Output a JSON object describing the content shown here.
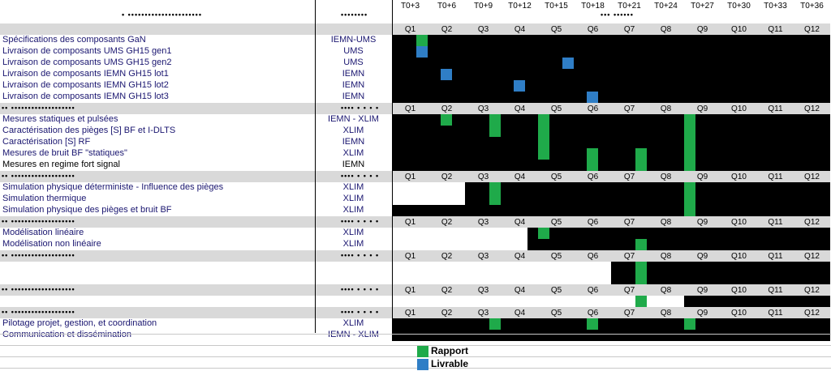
{
  "colors": {
    "black": "#000000",
    "rapport": "#1faa4a",
    "livrable": "#2f7ec6",
    "header_grey": "#d9d9d9"
  },
  "timeline": {
    "ticks": [
      "T0+3",
      "T0+6",
      "T0+9",
      "T0+12",
      "T0+15",
      "T0+18",
      "T0+21",
      "T0+24",
      "T0+27",
      "T0+30",
      "T0+33",
      "T0+36"
    ],
    "quarters": [
      "Q1",
      "Q2",
      "Q3",
      "Q4",
      "Q5",
      "Q6",
      "Q7",
      "Q8",
      "Q9",
      "Q10",
      "Q11",
      "Q12"
    ]
  },
  "sections": [
    {
      "tasks": [
        {
          "label": "Spécifications des composants GaN",
          "partner": "IEMN-UMS",
          "start": 0,
          "end": 12,
          "rapport": [
            2
          ],
          "livrable": []
        },
        {
          "label": "Livraison de composants UMS GH15 gen1",
          "partner": "UMS",
          "start": 0,
          "end": 12,
          "rapport": [],
          "livrable": [
            2
          ]
        },
        {
          "label": "Livraison de composants UMS GH15 gen2",
          "partner": "UMS",
          "start": 0,
          "end": 12,
          "rapport": [],
          "livrable": [
            14
          ]
        },
        {
          "label": "Livraison de composants IEMN GH15 lot1",
          "partner": "IEMN",
          "start": 0,
          "end": 12,
          "rapport": [],
          "livrable": [
            4
          ]
        },
        {
          "label": "Livraison de composants IEMN GH15 lot2",
          "partner": "IEMN",
          "start": 0,
          "end": 12,
          "rapport": [],
          "livrable": [
            10
          ]
        },
        {
          "label": "Livraison de composants IEMN GH15 lot3",
          "partner": "IEMN",
          "start": 0,
          "end": 12,
          "rapport": [],
          "livrable": [
            16
          ]
        }
      ]
    },
    {
      "tasks": [
        {
          "label": "Mesures statiques et pulsées",
          "partner": "IEMN - XLIM",
          "start": 0,
          "end": 12,
          "rapport": [
            4,
            8,
            12,
            24
          ],
          "livrable": []
        },
        {
          "label": "Caractérisation des pièges [S] BF et I-DLTS",
          "partner": "XLIM",
          "start": 0,
          "end": 12,
          "rapport": [
            8,
            12,
            24
          ],
          "livrable": []
        },
        {
          "label": "Caractérisation [S] RF",
          "partner": "IEMN",
          "start": 0,
          "end": 12,
          "rapport": [
            12,
            24
          ],
          "livrable": []
        },
        {
          "label": "Mesures de bruit BF \"statiques\"",
          "partner": "XLIM",
          "start": 0,
          "end": 12,
          "rapport": [
            12,
            16,
            20,
            24
          ],
          "livrable": []
        },
        {
          "label": "Mesures en regime fort signal",
          "partner": "IEMN",
          "start": 0,
          "end": 12,
          "rapport": [
            16,
            20,
            24
          ],
          "livrable": [],
          "plain": true
        }
      ]
    },
    {
      "tasks": [
        {
          "label": "Simulation physique déterministe - Influence des pièges",
          "partner": "XLIM",
          "start": 2,
          "end": 12,
          "rapport": [
            8,
            24
          ],
          "livrable": []
        },
        {
          "label": "Simulation thermique",
          "partner": "XLIM",
          "start": 2,
          "end": 12,
          "rapport": [
            8,
            24
          ],
          "livrable": []
        },
        {
          "label": "Simulation physique des pièges et bruit BF",
          "partner": "XLIM",
          "start": 0,
          "end": 12,
          "rapport": [
            24
          ],
          "livrable": []
        }
      ]
    },
    {
      "tasks": [
        {
          "label": "Modélisation linéaire",
          "partner": "XLIM",
          "start": 3.7,
          "end": 12,
          "rapport": [
            12
          ],
          "livrable": []
        },
        {
          "label": "Modélisation non linéaire",
          "partner": "XLIM",
          "start": 3.7,
          "end": 12,
          "rapport": [
            20
          ],
          "livrable": []
        }
      ]
    },
    {
      "tasks": [
        {
          "label": "",
          "partner": "",
          "start": 6,
          "end": 12,
          "rapport": [
            20
          ],
          "livrable": []
        },
        {
          "label": "",
          "partner": "",
          "start": 6,
          "end": 12,
          "rapport": [
            20
          ],
          "livrable": []
        }
      ]
    },
    {
      "tasks": [
        {
          "label": "",
          "partner": "",
          "start": 8,
          "end": 12,
          "rapport": [
            20
          ],
          "livrable": []
        }
      ]
    },
    {
      "tasks": [
        {
          "label": "Pilotage projet, gestion, et coordination",
          "partner": "XLIM",
          "start": 0,
          "end": 12,
          "rapport": [
            8,
            16,
            24
          ],
          "livrable": []
        },
        {
          "label": "Communication et dissémination",
          "partner": "IEMN - XLIM",
          "start": 0,
          "end": 12,
          "rapport": [],
          "livrable": []
        }
      ]
    }
  ],
  "legend": [
    {
      "label": "Rapport",
      "color": "#1faa4a"
    },
    {
      "label": "Livrable",
      "color": "#2f7ec6"
    }
  ]
}
